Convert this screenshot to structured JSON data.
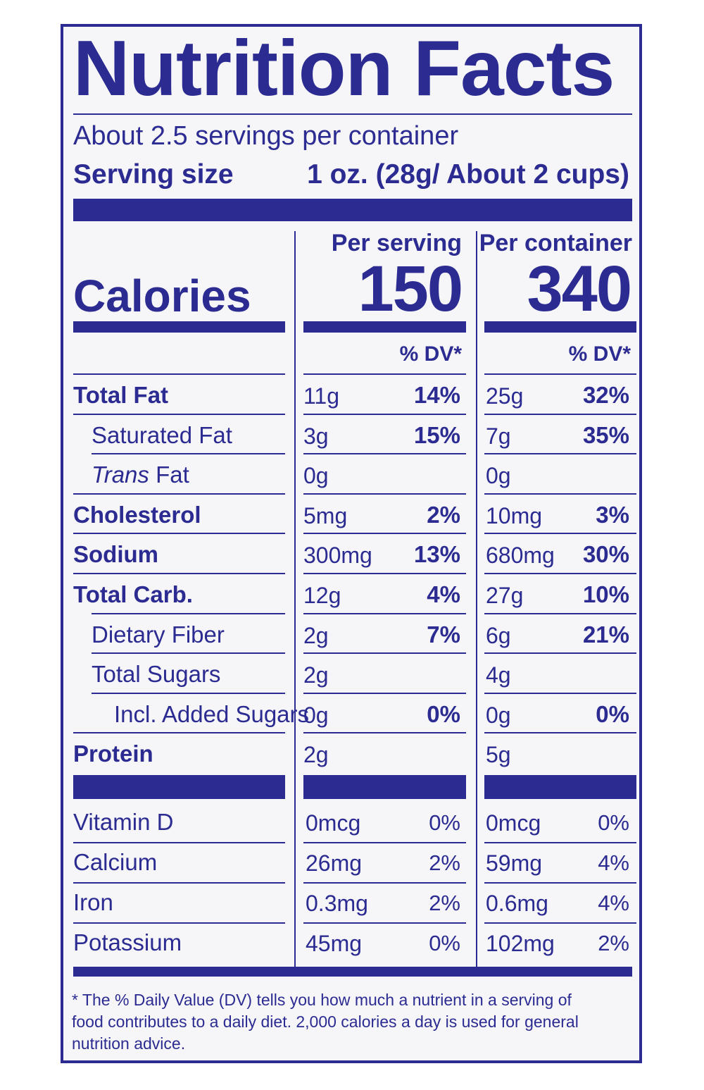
{
  "title": "Nutrition Facts",
  "servings_per_container": "About 2.5 servings per container",
  "serving_size_label": "Serving size",
  "serving_size_value": "1 oz. (28g/ About 2 cups)",
  "calories_label": "Calories",
  "per_serving": {
    "heading": "Per serving",
    "calories": "150"
  },
  "per_container": {
    "heading": "Per container",
    "calories": "340"
  },
  "dv_heading": "% DV*",
  "nutrients": [
    {
      "name": "Total Fat",
      "s_amt": "11g",
      "s_pct": "14%",
      "c_amt": "25g",
      "c_pct": "32%"
    },
    {
      "name": "Saturated Fat",
      "s_amt": "3g",
      "s_pct": "15%",
      "c_amt": "7g",
      "c_pct": "35%"
    },
    {
      "name_italic": "Trans",
      "name": " Fat",
      "s_amt": "0g",
      "s_pct": "",
      "c_amt": "0g",
      "c_pct": ""
    },
    {
      "name": "Cholesterol",
      "s_amt": "5mg",
      "s_pct": "2%",
      "c_amt": "10mg",
      "c_pct": "3%"
    },
    {
      "name": "Sodium",
      "s_amt": "300mg",
      "s_pct": "13%",
      "c_amt": "680mg",
      "c_pct": "30%"
    },
    {
      "name": "Total Carb.",
      "s_amt": "12g",
      "s_pct": "4%",
      "c_amt": "27g",
      "c_pct": "10%"
    },
    {
      "name": "Dietary Fiber",
      "s_amt": "2g",
      "s_pct": "7%",
      "c_amt": "6g",
      "c_pct": "21%"
    },
    {
      "name": "Total Sugars",
      "s_amt": "2g",
      "s_pct": "",
      "c_amt": "4g",
      "c_pct": ""
    },
    {
      "name": "Incl. Added Sugars",
      "s_amt": "0g",
      "s_pct": "0%",
      "c_amt": "0g",
      "c_pct": "0%"
    },
    {
      "name": "Protein",
      "s_amt": "2g",
      "s_pct": "",
      "c_amt": "5g",
      "c_pct": ""
    }
  ],
  "vitamins": [
    {
      "name": "Vitamin D",
      "s_amt": "0mcg",
      "s_pct": "0%",
      "c_amt": "0mcg",
      "c_pct": "0%"
    },
    {
      "name": "Calcium",
      "s_amt": "26mg",
      "s_pct": "2%",
      "c_amt": "59mg",
      "c_pct": "4%"
    },
    {
      "name": "Iron",
      "s_amt": "0.3mg",
      "s_pct": "2%",
      "c_amt": "0.6mg",
      "c_pct": "4%"
    },
    {
      "name": "Potassium",
      "s_amt": "45mg",
      "s_pct": "0%",
      "c_amt": "102mg",
      "c_pct": "2%"
    }
  ],
  "footnote": "* The % Daily Value (DV) tells you how much a nutrient in a serving of food contributes to a daily diet. 2,000 calories a day is used for general nutrition advice.",
  "colors": {
    "ink": "#2b2b92",
    "background": "#f6f6f8"
  }
}
